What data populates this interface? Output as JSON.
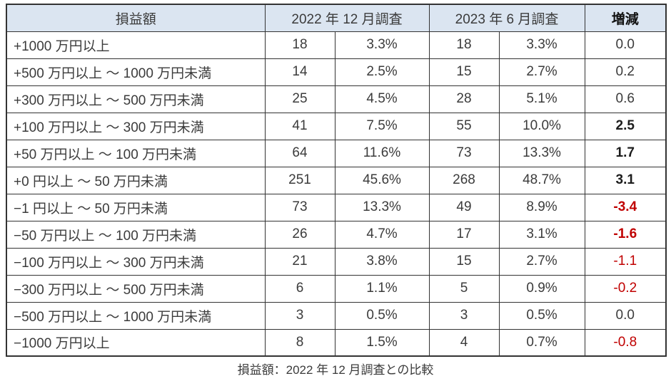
{
  "chart_data": {
    "type": "table",
    "caption": "損益額：2022 年 12 月調査との比較",
    "header": {
      "amount": "損益額",
      "survey_2022_12": "2022 年 12 月調査",
      "survey_2023_06": "2023 年 6 月調査",
      "change": "増減"
    },
    "rows": [
      {
        "label": "+1000 万円以上",
        "count_2022": "18",
        "pct_2022": "3.3%",
        "count_2023": "18",
        "pct_2023": "3.3%",
        "change": "0.0",
        "change_bold": false,
        "change_negative": false
      },
      {
        "label": "+500 万円以上 ～ 1000 万円未満",
        "count_2022": "14",
        "pct_2022": "2.5%",
        "count_2023": "15",
        "pct_2023": "2.7%",
        "change": "0.2",
        "change_bold": false,
        "change_negative": false
      },
      {
        "label": "+300 万円以上 ～ 500 万円未満",
        "count_2022": "25",
        "pct_2022": "4.5%",
        "count_2023": "28",
        "pct_2023": "5.1%",
        "change": "0.6",
        "change_bold": false,
        "change_negative": false
      },
      {
        "label": "+100 万円以上 ～ 300 万円未満",
        "count_2022": "41",
        "pct_2022": "7.5%",
        "count_2023": "55",
        "pct_2023": "10.0%",
        "change": "2.5",
        "change_bold": true,
        "change_negative": false
      },
      {
        "label": "+50 万円以上 ～ 100 万円未満",
        "count_2022": "64",
        "pct_2022": "11.6%",
        "count_2023": "73",
        "pct_2023": "13.3%",
        "change": "1.7",
        "change_bold": true,
        "change_negative": false
      },
      {
        "label": "+0 円以上 ～ 50 万円未満",
        "count_2022": "251",
        "pct_2022": "45.6%",
        "count_2023": "268",
        "pct_2023": "48.7%",
        "change": "3.1",
        "change_bold": true,
        "change_negative": false
      },
      {
        "label": "−1 円以上 ～ 50 万円未満",
        "count_2022": "73",
        "pct_2022": "13.3%",
        "count_2023": "49",
        "pct_2023": "8.9%",
        "change": "-3.4",
        "change_bold": true,
        "change_negative": true
      },
      {
        "label": "−50 万円以上 ～ 100 万円未満",
        "count_2022": "26",
        "pct_2022": "4.7%",
        "count_2023": "17",
        "pct_2023": "3.1%",
        "change": "-1.6",
        "change_bold": true,
        "change_negative": true
      },
      {
        "label": "−100 万円以上 ～ 300 万円未満",
        "count_2022": "21",
        "pct_2022": "3.8%",
        "count_2023": "15",
        "pct_2023": "2.7%",
        "change": "-1.1",
        "change_bold": false,
        "change_negative": true
      },
      {
        "label": "−300 万円以上 ～ 500 万円未満",
        "count_2022": "6",
        "pct_2022": "1.1%",
        "count_2023": "5",
        "pct_2023": "0.9%",
        "change": "-0.2",
        "change_bold": false,
        "change_negative": true
      },
      {
        "label": "−500 万円以上 ～ 1000 万円未満",
        "count_2022": "3",
        "pct_2022": "0.5%",
        "count_2023": "3",
        "pct_2023": "0.5%",
        "change": "0.0",
        "change_bold": false,
        "change_negative": false
      },
      {
        "label": "−1000 万円以上",
        "count_2022": "8",
        "pct_2022": "1.5%",
        "count_2023": "4",
        "pct_2023": "0.7%",
        "change": "-0.8",
        "change_bold": false,
        "change_negative": true
      }
    ]
  },
  "colors": {
    "header_bg": "#dbe5f1",
    "border": "#333333",
    "text": "#3b3b3b",
    "negative_red": "#c00000"
  }
}
